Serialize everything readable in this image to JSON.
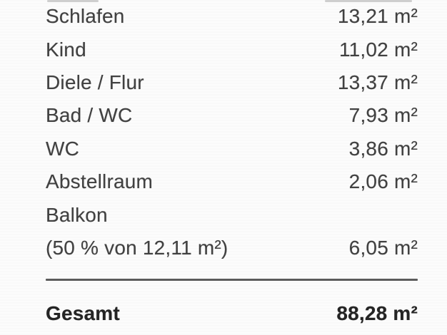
{
  "document": {
    "type": "floor-area-table",
    "language": "de",
    "unit": "m²"
  },
  "table": {
    "rows": [
      {
        "label": "Schlafen",
        "value": "13,21 m²"
      },
      {
        "label": "Kind",
        "value": "11,02 m²"
      },
      {
        "label": "Diele / Flur",
        "value": "13,37 m²"
      },
      {
        "label": "Bad / WC",
        "value": "7,93 m²"
      },
      {
        "label": "WC",
        "value": "3,86 m²"
      },
      {
        "label": "Abstellraum",
        "value": "2,06 m²"
      },
      {
        "label": "Balkon",
        "value": ""
      },
      {
        "label": "(50 % von 12,11 m²)",
        "value": "6,05 m²"
      }
    ],
    "total": {
      "label": "Gesamt",
      "value": "88,28 m²"
    }
  },
  "colors": {
    "background": "#fcfcfc",
    "row_text": "#414141",
    "total_text": "#242424",
    "divider": "#5c5c5c"
  }
}
